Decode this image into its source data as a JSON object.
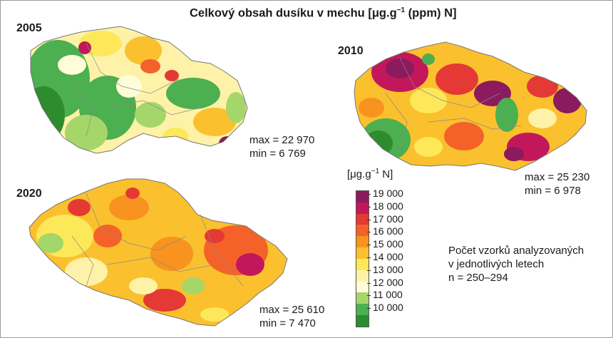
{
  "title_main": "Celkový obsah dusíku v mechu [μg.g",
  "title_sup": "−1",
  "title_tail": " (ppm) N]",
  "maps": [
    {
      "year": "2005",
      "max": "max = 22 970",
      "min": "min = 6 769"
    },
    {
      "year": "2010",
      "max": "max = 25 230",
      "min": "min = 6 978"
    },
    {
      "year": "2020",
      "max": "max = 25 610",
      "min": "min = 7 470"
    }
  ],
  "legend": {
    "unit_main": "[μg.g",
    "unit_sup": "−1",
    "unit_tail": " N]",
    "labels": [
      "19 000",
      "18 000",
      "17 000",
      "16 000",
      "15 000",
      "14 000",
      "13 000",
      "12 000",
      "11 000",
      "10 000"
    ],
    "colors": [
      "#8b1a5e",
      "#c2185b",
      "#e53935",
      "#f4622a",
      "#f7931e",
      "#fbc02d",
      "#fde85a",
      "#fdf2a8",
      "#fefdd8",
      "#a5d66a",
      "#4caf50",
      "#2e8b2e"
    ]
  },
  "note": {
    "line1": "Počet vzorků analyzovaných",
    "line2": "v jednotlivých letech",
    "line3": "n = 250–294"
  }
}
